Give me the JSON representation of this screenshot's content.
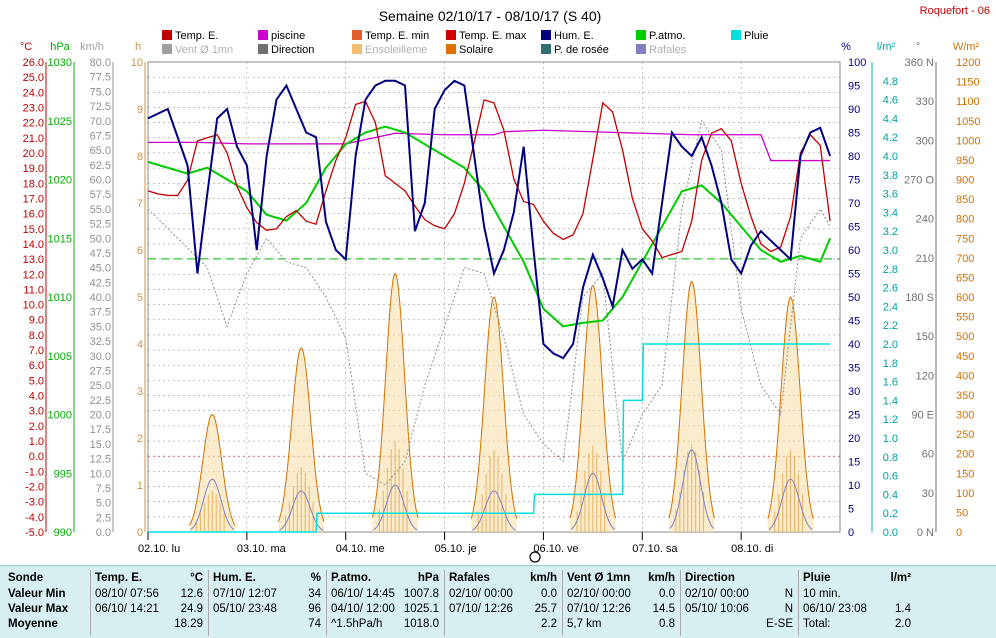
{
  "header": {
    "title": "Semaine 02/10/17 - 08/10/17 (S 40)",
    "station": "Roquefort - 06"
  },
  "legend": [
    {
      "label": "Temp. E.",
      "color": "#c00000",
      "dim": false
    },
    {
      "label": "piscine",
      "color": "#cc00cc",
      "dim": false
    },
    {
      "label": "Temp. E. min",
      "color": "#e06030",
      "dim": false
    },
    {
      "label": "Temp. E. max",
      "color": "#d00000",
      "dim": false
    },
    {
      "label": "Hum. E.",
      "color": "#000080",
      "dim": false
    },
    {
      "label": "P.atmo.",
      "color": "#00cc00",
      "dim": false
    },
    {
      "label": "Pluie",
      "color": "#00e0e0",
      "dim": false
    },
    {
      "label": "Vent Ø 1mn",
      "color": "#a0a0a0",
      "dim": true
    },
    {
      "label": "Direction",
      "color": "#707070",
      "dim": false
    },
    {
      "label": "Ensoleilleme",
      "color": "#f0c070",
      "dim": true
    },
    {
      "label": "Solaire",
      "color": "#e07000",
      "dim": false
    },
    {
      "label": "P. de rosée",
      "color": "#307070",
      "dim": false
    },
    {
      "label": "Rafales",
      "color": "#8080c0",
      "dim": true
    }
  ],
  "colors": {
    "temp": "#c00000",
    "pool": "#cc00cc",
    "hum": "#000080",
    "press": "#00cc00",
    "rain": "#00e0e0",
    "wind": "#909090",
    "solar": "#d07000",
    "sun": "#f0c070",
    "gust": "#8080c0",
    "dir": "#777777",
    "grid": "#999999",
    "zero": "#cc0000"
  },
  "chart_data": {
    "type": "line",
    "x_axis": {
      "labels": [
        "02.10. lu",
        "03.10. ma",
        "04.10. me",
        "05.10. je",
        "06.10. ve",
        "07.10. sa",
        "08.10. di"
      ]
    },
    "axes": {
      "temp": {
        "unit": "°C",
        "range": [
          -5,
          26
        ],
        "ticks": [
          "26.0",
          "25.0",
          "24.0",
          "23.0",
          "22.0",
          "21.0",
          "20.0",
          "19.0",
          "18.0",
          "17.0",
          "16.0",
          "15.0",
          "14.0",
          "13.0",
          "12.0",
          "11.0",
          "10.0",
          "9.0",
          "8.0",
          "7.0",
          "6.0",
          "5.0",
          "4.0",
          "3.0",
          "2.0",
          "1.0",
          "0.0",
          "-1.0",
          "-2.0",
          "-3.0",
          "-4.0",
          "-5.0"
        ]
      },
      "press": {
        "unit": "hPa",
        "range": [
          990,
          1030
        ],
        "ticks": [
          "1030",
          "1025",
          "1020",
          "1015",
          "1010",
          "1005",
          "1000",
          "995",
          "990"
        ]
      },
      "wind": {
        "unit": "km/h",
        "range": [
          0,
          80
        ],
        "ticks": [
          "80.0",
          "77.5",
          "75.0",
          "72.5",
          "70.0",
          "67.5",
          "65.0",
          "62.5",
          "60.0",
          "57.5",
          "55.0",
          "52.5",
          "50.0",
          "47.5",
          "45.0",
          "42.5",
          "40.0",
          "37.5",
          "35.0",
          "32.5",
          "30.0",
          "27.5",
          "25.0",
          "22.5",
          "20.0",
          "17.5",
          "15.0",
          "12.5",
          "10.0",
          "7.5",
          "5.0",
          "2.5",
          "0.0"
        ]
      },
      "sun": {
        "unit": "h",
        "range": [
          0,
          10
        ],
        "ticks": [
          "10",
          "9",
          "8",
          "7",
          "6",
          "5",
          "4",
          "3",
          "2",
          "1",
          "0"
        ]
      },
      "hum": {
        "unit": "%",
        "range": [
          0,
          100
        ],
        "ticks": [
          "100",
          "95",
          "90",
          "85",
          "80",
          "75",
          "70",
          "65",
          "60",
          "55",
          "50",
          "45",
          "40",
          "35",
          "30",
          "25",
          "20",
          "15",
          "10",
          "5",
          "0"
        ]
      },
      "rain": {
        "unit": "l/m²",
        "range": [
          0,
          5
        ],
        "ticks": [
          "4.8",
          "4.6",
          "4.4",
          "4.2",
          "4.0",
          "3.8",
          "3.6",
          "3.4",
          "3.2",
          "3.0",
          "2.8",
          "2.6",
          "2.4",
          "2.2",
          "2.0",
          "1.8",
          "1.6",
          "1.4",
          "1.2",
          "1.0",
          "0.8",
          "0.6",
          "0.4",
          "0.2",
          "0.0"
        ]
      },
      "dir": {
        "unit": "°",
        "ticks": [
          {
            "v": 360,
            "t": "360 N"
          },
          {
            "v": 330,
            "t": "330"
          },
          {
            "v": 300,
            "t": "300"
          },
          {
            "v": 270,
            "t": "270 O"
          },
          {
            "v": 240,
            "t": "240"
          },
          {
            "v": 210,
            "t": "210"
          },
          {
            "v": 180,
            "t": "180 S"
          },
          {
            "v": 150,
            "t": "150"
          },
          {
            "v": 120,
            "t": "120"
          },
          {
            "v": 90,
            "t": "90 E"
          },
          {
            "v": 60,
            "t": "60"
          },
          {
            "v": 30,
            "t": "30"
          },
          {
            "v": 0,
            "t": "0 N"
          }
        ]
      },
      "solar": {
        "unit": "W/m²",
        "range": [
          0,
          1200
        ],
        "ticks": [
          "1200",
          "1150",
          "1100",
          "1050",
          "1000",
          "950",
          "900",
          "850",
          "800",
          "750",
          "700",
          "650",
          "600",
          "550",
          "500",
          "450",
          "400",
          "350",
          "300",
          "250",
          "200",
          "150",
          "100",
          "50",
          "0"
        ]
      }
    },
    "series": {
      "temp": {
        "name": "Temp. E.",
        "x": [
          0,
          0.1,
          0.2,
          0.3,
          0.4,
          0.5,
          0.6,
          0.7,
          0.8,
          0.9,
          1.0,
          1.1,
          1.2,
          1.3,
          1.4,
          1.5,
          1.6,
          1.7,
          1.8,
          1.9,
          2.0,
          2.1,
          2.2,
          2.3,
          2.4,
          2.5,
          2.6,
          2.7,
          2.8,
          2.9,
          3.0,
          3.1,
          3.2,
          3.3,
          3.4,
          3.5,
          3.6,
          3.7,
          3.8,
          3.9,
          4.0,
          4.1,
          4.2,
          4.3,
          4.4,
          4.5,
          4.6,
          4.7,
          4.8,
          4.9,
          5.0,
          5.1,
          5.2,
          5.3,
          5.4,
          5.5,
          5.6,
          5.7,
          5.8,
          5.9,
          6.0,
          6.1,
          6.2,
          6.3,
          6.4,
          6.5,
          6.6,
          6.7,
          6.8,
          6.9
        ],
        "y": [
          17.5,
          17.3,
          17.2,
          17.2,
          18.2,
          20.8,
          21.0,
          21.2,
          20.0,
          17.8,
          16.4,
          15.4,
          14.9,
          15.0,
          15.8,
          16.2,
          15.5,
          15.3,
          17.5,
          19.5,
          21.0,
          23.2,
          23.4,
          22.0,
          18.5,
          18.0,
          17.5,
          16.5,
          15.6,
          15.2,
          15.0,
          16.0,
          18.0,
          20.7,
          23.5,
          23.3,
          21.5,
          18.3,
          16.8,
          16.6,
          15.5,
          14.7,
          14.3,
          14.6,
          16.0,
          19.6,
          23.3,
          22.7,
          20.2,
          17.0,
          15.0,
          14.2,
          13.1,
          13.3,
          13.5,
          15.5,
          19.5,
          21.3,
          21.6,
          20.8,
          18.0,
          15.8,
          14.0,
          13.5,
          13.8,
          15.8,
          20.0,
          21.2,
          20.5,
          15.5
        ]
      },
      "pool": {
        "name": "piscine",
        "x": [
          0,
          0.5,
          1.0,
          1.5,
          2.0,
          2.5,
          3.0,
          3.5,
          3.6,
          4.0,
          4.5,
          5.0,
          5.5,
          6.0,
          6.2,
          6.3,
          6.9
        ],
        "y": [
          20.7,
          20.7,
          20.6,
          20.6,
          20.6,
          21.3,
          21.2,
          21.2,
          21.4,
          21.5,
          21.4,
          21.3,
          21.2,
          21.2,
          21.2,
          19.5,
          19.5
        ]
      },
      "hum": {
        "name": "Hum. E.",
        "x": [
          0,
          0.2,
          0.4,
          0.5,
          0.6,
          0.7,
          0.8,
          0.9,
          1.0,
          1.1,
          1.2,
          1.3,
          1.4,
          1.5,
          1.6,
          1.7,
          1.8,
          1.9,
          2.0,
          2.1,
          2.2,
          2.3,
          2.4,
          2.5,
          2.6,
          2.7,
          2.8,
          2.9,
          3.0,
          3.1,
          3.2,
          3.3,
          3.4,
          3.5,
          3.6,
          3.7,
          3.8,
          3.9,
          4.0,
          4.1,
          4.2,
          4.3,
          4.4,
          4.5,
          4.6,
          4.7,
          4.8,
          4.9,
          5.0,
          5.1,
          5.2,
          5.3,
          5.4,
          5.5,
          5.6,
          5.7,
          5.8,
          5.9,
          6.0,
          6.1,
          6.2,
          6.3,
          6.4,
          6.5,
          6.6,
          6.7,
          6.8,
          6.9
        ],
        "y": [
          88,
          90,
          78,
          55,
          72,
          88,
          90,
          82,
          78,
          60,
          80,
          92,
          95,
          90,
          85,
          84,
          66,
          60,
          58,
          80,
          92,
          95,
          96,
          96,
          95,
          64,
          70,
          90,
          94,
          96,
          95,
          80,
          65,
          55,
          60,
          68,
          82,
          60,
          40,
          38,
          37,
          40,
          52,
          59,
          54,
          48,
          60,
          56,
          58,
          55,
          70,
          85,
          82,
          80,
          84,
          78,
          70,
          58,
          55,
          61,
          64,
          62,
          60,
          58,
          80,
          85,
          86,
          80
        ]
      },
      "press": {
        "name": "P.atmo.",
        "x": [
          0,
          0.2,
          0.4,
          0.6,
          0.8,
          1.0,
          1.2,
          1.4,
          1.6,
          1.8,
          2.0,
          2.2,
          2.4,
          2.6,
          2.8,
          3.0,
          3.2,
          3.4,
          3.6,
          3.8,
          4.0,
          4.2,
          4.4,
          4.6,
          4.8,
          5.0,
          5.2,
          5.4,
          5.6,
          5.8,
          6.0,
          6.2,
          6.4,
          6.6,
          6.8,
          6.9
        ],
        "y": [
          1021.5,
          1021,
          1020.5,
          1021,
          1020,
          1019,
          1017,
          1016.5,
          1018,
          1021,
          1023,
          1024,
          1024.5,
          1024,
          1023,
          1022,
          1021,
          1019,
          1016,
          1013,
          1009,
          1007.5,
          1007.8,
          1008,
          1010,
          1013,
          1016,
          1019,
          1019.5,
          1018,
          1016,
          1014,
          1013,
          1013.5,
          1013,
          1015
        ]
      },
      "rain": {
        "name": "Pluie",
        "x": [
          0,
          1.7,
          1.71,
          3.9,
          3.91,
          4.8,
          4.81,
          5.0,
          5.01,
          6.9
        ],
        "y": [
          0,
          0,
          0.2,
          0.2,
          0.4,
          0.4,
          1.4,
          1.4,
          2.0,
          2.0
        ]
      },
      "wind": {
        "name": "Vent Ø 1mn",
        "x": [
          0,
          0.3,
          0.6,
          0.8,
          1.0,
          1.2,
          1.4,
          1.6,
          1.8,
          2.0,
          2.2,
          2.4,
          2.6,
          2.8,
          3.0,
          3.2,
          3.4,
          3.6,
          3.8,
          4.0,
          4.2,
          4.4,
          4.6,
          4.8,
          5.0,
          5.2,
          5.4,
          5.6,
          5.8,
          6.0,
          6.2,
          6.4,
          6.6,
          6.8,
          6.9
        ],
        "y": [
          55,
          50,
          45,
          35,
          44,
          50,
          46,
          45,
          40,
          33,
          10,
          8,
          12,
          25,
          35,
          45,
          44,
          33,
          20,
          15,
          12,
          40,
          44,
          12,
          20,
          25,
          55,
          70,
          65,
          38,
          25,
          20,
          50,
          55,
          52
        ]
      },
      "solar": {
        "name": "Solaire",
        "peaks": [
          {
            "x": 0.65,
            "v": 300
          },
          {
            "x": 1.55,
            "v": 470
          },
          {
            "x": 2.5,
            "v": 660
          },
          {
            "x": 3.5,
            "v": 600
          },
          {
            "x": 4.5,
            "v": 630
          },
          {
            "x": 5.5,
            "v": 640
          },
          {
            "x": 6.5,
            "v": 600
          }
        ],
        "halfwidth": 0.23
      },
      "gust": {
        "name": "Rafales",
        "peaks": [
          {
            "x": 0.65,
            "v": 9
          },
          {
            "x": 1.55,
            "v": 7
          },
          {
            "x": 2.5,
            "v": 8
          },
          {
            "x": 3.5,
            "v": 7
          },
          {
            "x": 4.5,
            "v": 10
          },
          {
            "x": 5.5,
            "v": 14
          },
          {
            "x": 6.5,
            "v": 9
          }
        ],
        "halfwidth": 0.22
      }
    }
  },
  "stats": {
    "sonde": {
      "title": "Sonde",
      "rows": [
        "Valeur Min",
        "Valeur Max",
        "Moyenne"
      ]
    },
    "temp": {
      "title": "Temp. E.",
      "unit": "°C",
      "rows": [
        [
          "08/10/ 07:56",
          "12.6"
        ],
        [
          "06/10/ 14:21",
          "24.9"
        ],
        [
          "",
          "18.29"
        ]
      ]
    },
    "hum": {
      "title": "Hum. E.",
      "unit": "%",
      "rows": [
        [
          "07/10/ 12:07",
          "34"
        ],
        [
          "05/10/ 23:48",
          "96"
        ],
        [
          "",
          "74"
        ]
      ]
    },
    "press": {
      "title": "P.atmo.",
      "unit": "hPa",
      "rows": [
        [
          "06/10/ 14:45",
          "1007.8"
        ],
        [
          "04/10/ 12:00",
          "1025.1"
        ],
        [
          "^1.5hPa/h",
          "1018.0"
        ]
      ]
    },
    "gust": {
      "title": "Rafales",
      "unit": "km/h",
      "rows": [
        [
          "02/10/ 00:00",
          "0.0"
        ],
        [
          "07/10/ 12:26",
          "25.7"
        ],
        [
          "",
          "2.2"
        ]
      ]
    },
    "wind": {
      "title": "Vent Ø 1mn",
      "unit": "km/h",
      "rows": [
        [
          "02/10/ 00:00",
          "0.0"
        ],
        [
          "07/10/ 12:26",
          "14.5"
        ],
        [
          "5,7 km",
          "0.8"
        ]
      ]
    },
    "dir": {
      "title": "Direction",
      "unit": "",
      "rows": [
        [
          "02/10/ 00:00",
          "N"
        ],
        [
          "05/10/ 10:06",
          "N"
        ],
        [
          "",
          "E-SE"
        ]
      ]
    },
    "rain": {
      "title": "Pluie",
      "unit": "l/m²",
      "rows": [
        [
          "10 min.",
          ""
        ],
        [
          "06/10/ 23:08",
          "1.4"
        ],
        [
          "Total:",
          "2.0"
        ]
      ]
    }
  }
}
